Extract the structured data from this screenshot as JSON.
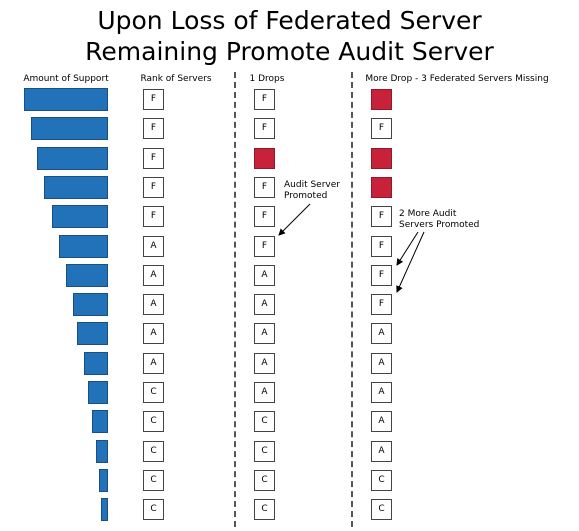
{
  "title": {
    "line1": "Upon Loss of Federated Server",
    "line2": "Remaining Promote Audit Server"
  },
  "columns": {
    "support": "Amount of Support",
    "rank": "Rank of Servers",
    "one_drop": "1 Drops",
    "more_drop": "More Drop - 3 Federated Servers Missing"
  },
  "support_levels": [
    1.0,
    0.92,
    0.84,
    0.76,
    0.67,
    0.58,
    0.5,
    0.42,
    0.37,
    0.28,
    0.24,
    0.19,
    0.14,
    0.11,
    0.08
  ],
  "rank_column": [
    {
      "label": "F",
      "removed": false
    },
    {
      "label": "F",
      "removed": false
    },
    {
      "label": "F",
      "removed": false
    },
    {
      "label": "F",
      "removed": false
    },
    {
      "label": "F",
      "removed": false
    },
    {
      "label": "A",
      "removed": false
    },
    {
      "label": "A",
      "removed": false
    },
    {
      "label": "A",
      "removed": false
    },
    {
      "label": "A",
      "removed": false
    },
    {
      "label": "A",
      "removed": false
    },
    {
      "label": "C",
      "removed": false
    },
    {
      "label": "C",
      "removed": false
    },
    {
      "label": "C",
      "removed": false
    },
    {
      "label": "C",
      "removed": false
    },
    {
      "label": "C",
      "removed": false
    }
  ],
  "one_drop_column": [
    {
      "label": "F",
      "removed": false
    },
    {
      "label": "F",
      "removed": false
    },
    {
      "label": "",
      "removed": true
    },
    {
      "label": "F",
      "removed": false
    },
    {
      "label": "F",
      "removed": false
    },
    {
      "label": "F",
      "removed": false
    },
    {
      "label": "A",
      "removed": false
    },
    {
      "label": "A",
      "removed": false
    },
    {
      "label": "A",
      "removed": false
    },
    {
      "label": "A",
      "removed": false
    },
    {
      "label": "A",
      "removed": false
    },
    {
      "label": "C",
      "removed": false
    },
    {
      "label": "C",
      "removed": false
    },
    {
      "label": "C",
      "removed": false
    },
    {
      "label": "C",
      "removed": false
    }
  ],
  "more_drop_column": [
    {
      "label": "",
      "removed": true
    },
    {
      "label": "F",
      "removed": false
    },
    {
      "label": "",
      "removed": true
    },
    {
      "label": "",
      "removed": true
    },
    {
      "label": "F",
      "removed": false
    },
    {
      "label": "F",
      "removed": false
    },
    {
      "label": "F",
      "removed": false
    },
    {
      "label": "F",
      "removed": false
    },
    {
      "label": "A",
      "removed": false
    },
    {
      "label": "A",
      "removed": false
    },
    {
      "label": "A",
      "removed": false
    },
    {
      "label": "A",
      "removed": false
    },
    {
      "label": "A",
      "removed": false
    },
    {
      "label": "C",
      "removed": false
    },
    {
      "label": "C",
      "removed": false
    }
  ],
  "annotations": {
    "one_drop": {
      "line1": "Audit Server",
      "line2": "Promoted"
    },
    "more_drop": {
      "line1": "2 More Audit",
      "line2": "Servers Promoted"
    }
  },
  "colors": {
    "bar": "#2172b8",
    "removed": "#c8213a",
    "box_border": "#444444",
    "divider": "#555555"
  }
}
